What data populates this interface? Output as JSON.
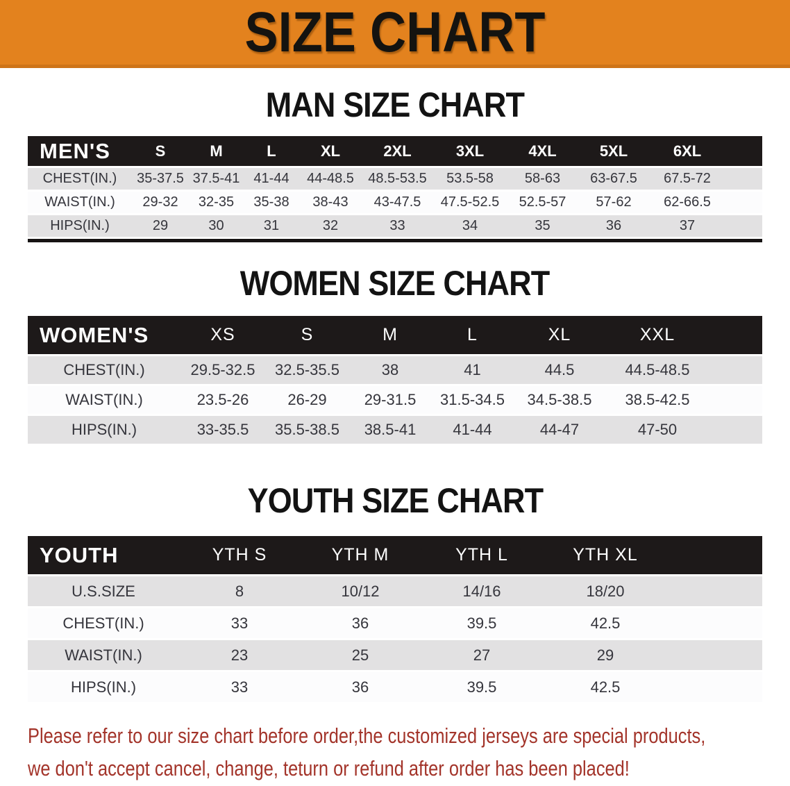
{
  "banner": {
    "title": "SIZE CHART"
  },
  "colors": {
    "banner_bg": "#E3821E",
    "banner_border": "#CE7418",
    "header_band": "#1D1919",
    "row_gray": "#E2E1E2",
    "note_red": "#A3342A"
  },
  "sections": [
    {
      "heading": "MAN SIZE CHART",
      "table": {
        "corner": "MEN'S",
        "columns": [
          "S",
          "M",
          "L",
          "XL",
          "2XL",
          "3XL",
          "4XL",
          "5XL",
          "6XL"
        ],
        "rows": [
          {
            "label": "CHEST(IN.)",
            "values": [
              "35-37.5",
              "37.5-41",
              "41-44",
              "44-48.5",
              "48.5-53.5",
              "53.5-58",
              "58-63",
              "63-67.5",
              "67.5-72"
            ]
          },
          {
            "label": "WAIST(IN.)",
            "values": [
              "29-32",
              "32-35",
              "35-38",
              "38-43",
              "43-47.5",
              "47.5-52.5",
              "52.5-57",
              "57-62",
              "62-66.5"
            ]
          },
          {
            "label": "HIPS(IN.)",
            "values": [
              "29",
              "30",
              "31",
              "32",
              "33",
              "34",
              "35",
              "36",
              "37"
            ]
          }
        ]
      }
    },
    {
      "heading": "WOMEN SIZE CHART",
      "table": {
        "corner": "WOMEN'S",
        "columns": [
          "XS",
          "S",
          "M",
          "L",
          "XL",
          "XXL"
        ],
        "rows": [
          {
            "label": "CHEST(IN.)",
            "values": [
              "29.5-32.5",
              "32.5-35.5",
              "38",
              "41",
              "44.5",
              "44.5-48.5"
            ]
          },
          {
            "label": "WAIST(IN.)",
            "values": [
              "23.5-26",
              "26-29",
              "29-31.5",
              "31.5-34.5",
              "34.5-38.5",
              "38.5-42.5"
            ]
          },
          {
            "label": "HIPS(IN.)",
            "values": [
              "33-35.5",
              "35.5-38.5",
              "38.5-41",
              "41-44",
              "44-47",
              "47-50"
            ]
          }
        ]
      }
    },
    {
      "heading": "YOUTH SIZE CHART",
      "table": {
        "corner": "YOUTH",
        "columns": [
          "YTH S",
          "YTH M",
          "YTH L",
          "YTH XL"
        ],
        "rows": [
          {
            "label": "U.S.SIZE",
            "values": [
              "8",
              "10/12",
              "14/16",
              "18/20"
            ]
          },
          {
            "label": "CHEST(IN.)",
            "values": [
              "33",
              "36",
              "39.5",
              "42.5"
            ]
          },
          {
            "label": "WAIST(IN.)",
            "values": [
              "23",
              "25",
              "27",
              "29"
            ]
          },
          {
            "label": "HIPS(IN.)",
            "values": [
              "33",
              "36",
              "39.5",
              "42.5"
            ]
          }
        ]
      }
    }
  ],
  "footer": {
    "line1": "Please refer to our size chart before order,the customized jerseys are special products,",
    "line2": "we don't accept cancel, change, teturn or refund after order has been placed!"
  }
}
